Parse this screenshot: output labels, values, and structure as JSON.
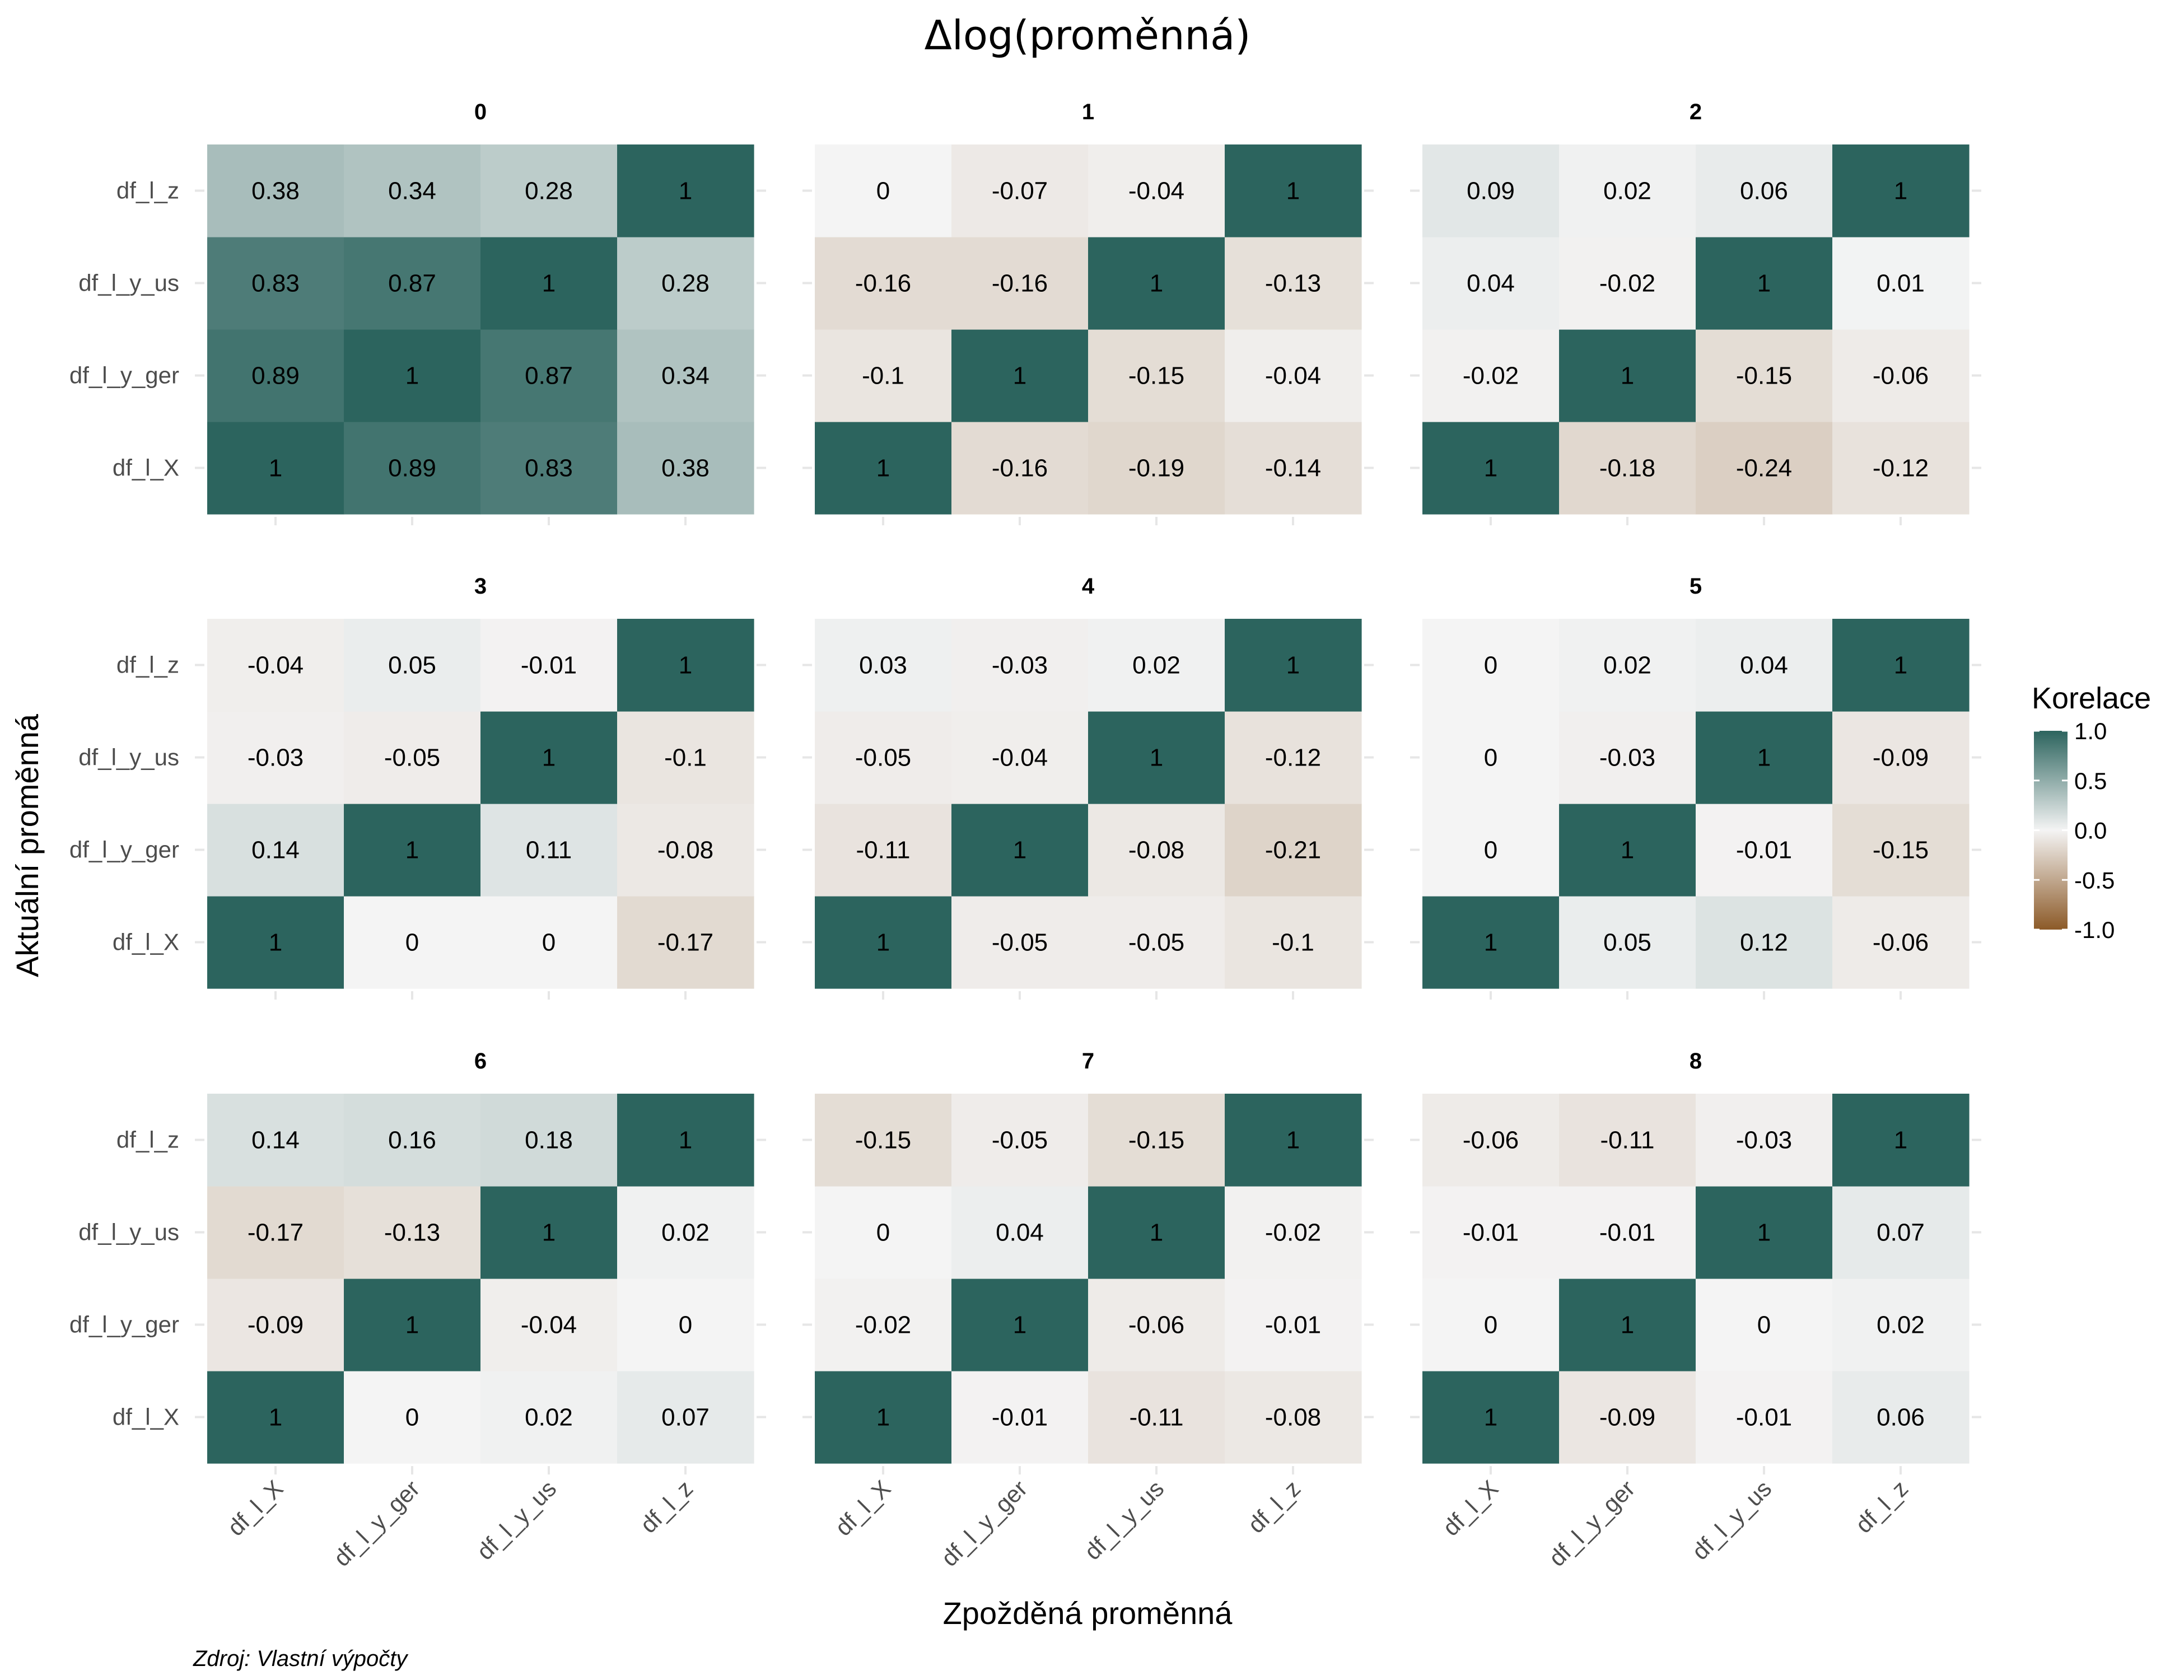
{
  "chart_data": {
    "type": "heatmap",
    "title": "Δlog(proměnná)",
    "xlabel": "Zpožděná proměnná",
    "ylabel": "Aktuální proměnná",
    "caption": "Zdroj: Vlastní výpočty",
    "x_categories": [
      "df_l_X",
      "df_l_y_ger",
      "df_l_y_us",
      "df_l_z"
    ],
    "y_categories": [
      "df_l_X",
      "df_l_y_ger",
      "df_l_y_us",
      "df_l_z"
    ],
    "legend": {
      "title": "Korelace",
      "position": "right",
      "breaks": [
        "1.0",
        "0.5",
        "0.0",
        "-0.5",
        "-1.0"
      ],
      "range": [
        -1,
        1
      ],
      "colors": {
        "low": "#8c5a28",
        "mid": "#f4f4f4",
        "high": "#2c645e"
      }
    },
    "grid": true,
    "panels": [
      {
        "label": "0",
        "values": [
          [
            "1",
            "0.89",
            "0.83",
            "0.38"
          ],
          [
            "0.89",
            "1",
            "0.87",
            "0.34"
          ],
          [
            "0.83",
            "0.87",
            "1",
            "0.28"
          ],
          [
            "0.38",
            "0.34",
            "0.28",
            "1"
          ]
        ]
      },
      {
        "label": "1",
        "values": [
          [
            "1",
            "-0.16",
            "-0.19",
            "-0.14"
          ],
          [
            "-0.1",
            "1",
            "-0.15",
            "-0.04"
          ],
          [
            "-0.16",
            "-0.16",
            "1",
            "-0.13"
          ],
          [
            "0",
            "-0.07",
            "-0.04",
            "1"
          ]
        ]
      },
      {
        "label": "2",
        "values": [
          [
            "1",
            "-0.18",
            "-0.24",
            "-0.12"
          ],
          [
            "-0.02",
            "1",
            "-0.15",
            "-0.06"
          ],
          [
            "0.04",
            "-0.02",
            "1",
            "0.01"
          ],
          [
            "0.09",
            "0.02",
            "0.06",
            "1"
          ]
        ]
      },
      {
        "label": "3",
        "values": [
          [
            "1",
            "0",
            "0",
            "-0.17"
          ],
          [
            "0.14",
            "1",
            "0.11",
            "-0.08"
          ],
          [
            "-0.03",
            "-0.05",
            "1",
            "-0.1"
          ],
          [
            "-0.04",
            "0.05",
            "-0.01",
            "1"
          ]
        ]
      },
      {
        "label": "4",
        "values": [
          [
            "1",
            "-0.05",
            "-0.05",
            "-0.1"
          ],
          [
            "-0.11",
            "1",
            "-0.08",
            "-0.21"
          ],
          [
            "-0.05",
            "-0.04",
            "1",
            "-0.12"
          ],
          [
            "0.03",
            "-0.03",
            "0.02",
            "1"
          ]
        ]
      },
      {
        "label": "5",
        "values": [
          [
            "1",
            "0.05",
            "0.12",
            "-0.06"
          ],
          [
            "0",
            "1",
            "-0.01",
            "-0.15"
          ],
          [
            "0",
            "-0.03",
            "1",
            "-0.09"
          ],
          [
            "0",
            "0.02",
            "0.04",
            "1"
          ]
        ]
      },
      {
        "label": "6",
        "values": [
          [
            "1",
            "0",
            "0.02",
            "0.07"
          ],
          [
            "-0.09",
            "1",
            "-0.04",
            "0"
          ],
          [
            "-0.17",
            "-0.13",
            "1",
            "0.02"
          ],
          [
            "0.14",
            "0.16",
            "0.18",
            "1"
          ]
        ]
      },
      {
        "label": "7",
        "values": [
          [
            "1",
            "-0.01",
            "-0.11",
            "-0.08"
          ],
          [
            "-0.02",
            "1",
            "-0.06",
            "-0.01"
          ],
          [
            "0",
            "0.04",
            "1",
            "-0.02"
          ],
          [
            "-0.15",
            "-0.05",
            "-0.15",
            "1"
          ]
        ]
      },
      {
        "label": "8",
        "values": [
          [
            "1",
            "-0.09",
            "-0.01",
            "0.06"
          ],
          [
            "0",
            "1",
            "0",
            "0.02"
          ],
          [
            "-0.01",
            "-0.01",
            "1",
            "0.07"
          ],
          [
            "-0.06",
            "-0.11",
            "-0.03",
            "1"
          ]
        ]
      }
    ]
  }
}
